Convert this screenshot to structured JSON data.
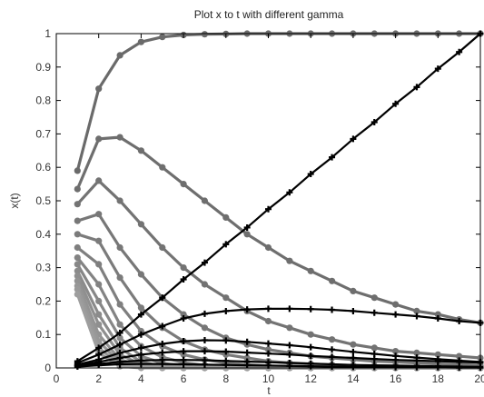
{
  "chart_data": {
    "type": "line",
    "title": "Plot x to t with different gamma",
    "xlabel": "t",
    "ylabel": "x(t)",
    "xlim": [
      0,
      20
    ],
    "ylim": [
      0,
      1
    ],
    "xticks": [
      0,
      2,
      4,
      6,
      8,
      10,
      12,
      14,
      16,
      18,
      20
    ],
    "yticks": [
      0,
      0.1,
      0.2,
      0.3,
      0.4,
      0.5,
      0.6,
      0.7,
      0.8,
      0.9,
      1
    ],
    "grid": false,
    "x": [
      1,
      2,
      3,
      4,
      5,
      6,
      7,
      8,
      9,
      10,
      11,
      12,
      13,
      14,
      15,
      16,
      17,
      18,
      19,
      20
    ],
    "series": [
      {
        "color": "#6a6a6a",
        "values": [
          0.59,
          0.835,
          0.935,
          0.975,
          0.99,
          0.996,
          0.998,
          0.999,
          1,
          1,
          1,
          1,
          1,
          1,
          1,
          1,
          1,
          1,
          1,
          1
        ]
      },
      {
        "color": "#6e6e6e",
        "values": [
          0.535,
          0.685,
          0.69,
          0.65,
          0.6,
          0.55,
          0.5,
          0.45,
          0.4,
          0.36,
          0.32,
          0.29,
          0.26,
          0.23,
          0.21,
          0.19,
          0.17,
          0.16,
          0.145,
          0.135
        ]
      },
      {
        "color": "#737373",
        "values": [
          0.49,
          0.56,
          0.5,
          0.43,
          0.36,
          0.3,
          0.25,
          0.21,
          0.17,
          0.14,
          0.12,
          0.1,
          0.085,
          0.07,
          0.06,
          0.05,
          0.045,
          0.04,
          0.035,
          0.03
        ]
      },
      {
        "color": "#777777",
        "values": [
          0.44,
          0.46,
          0.36,
          0.28,
          0.21,
          0.16,
          0.12,
          0.09,
          0.07,
          0.055,
          0.045,
          0.035,
          0.03,
          0.025,
          0.02,
          0.018,
          0.015,
          0.012,
          0.01,
          0.008
        ]
      },
      {
        "color": "#7b7b7b",
        "values": [
          0.4,
          0.38,
          0.27,
          0.18,
          0.12,
          0.08,
          0.055,
          0.04,
          0.03,
          0.02,
          0.015,
          0.012,
          0.009,
          0.007,
          0.005,
          0.004,
          0.003,
          0.002,
          0.002,
          0.001
        ]
      },
      {
        "color": "#7f7f7f",
        "values": [
          0.36,
          0.31,
          0.19,
          0.11,
          0.065,
          0.04,
          0.025,
          0.015,
          0.01,
          0.006,
          0.004,
          0.003,
          0.002,
          0.001,
          0.001,
          0.001,
          0,
          0,
          0,
          0
        ]
      },
      {
        "color": "#838383",
        "values": [
          0.33,
          0.25,
          0.13,
          0.065,
          0.032,
          0.016,
          0.008,
          0.004,
          0.002,
          0.001,
          0.001,
          0,
          0,
          0,
          0,
          0,
          0,
          0,
          0,
          0
        ]
      },
      {
        "color": "#878787",
        "values": [
          0.31,
          0.2,
          0.09,
          0.035,
          0.014,
          0.005,
          0.002,
          0.001,
          0,
          0,
          0,
          0,
          0,
          0,
          0,
          0,
          0,
          0,
          0,
          0
        ]
      },
      {
        "color": "#8b8b8b",
        "values": [
          0.29,
          0.16,
          0.06,
          0.018,
          0.005,
          0.002,
          0.001,
          0,
          0,
          0,
          0,
          0,
          0,
          0,
          0,
          0,
          0,
          0,
          0,
          0
        ]
      },
      {
        "color": "#8f8f8f",
        "values": [
          0.275,
          0.13,
          0.04,
          0.01,
          0.002,
          0,
          0,
          0,
          0,
          0,
          0,
          0,
          0,
          0,
          0,
          0,
          0,
          0,
          0,
          0
        ]
      },
      {
        "color": "#939393",
        "values": [
          0.26,
          0.1,
          0.025,
          0.005,
          0.001,
          0,
          0,
          0,
          0,
          0,
          0,
          0,
          0,
          0,
          0,
          0,
          0,
          0,
          0,
          0
        ]
      },
      {
        "color": "#979797",
        "values": [
          0.245,
          0.08,
          0.015,
          0.002,
          0,
          0,
          0,
          0,
          0,
          0,
          0,
          0,
          0,
          0,
          0,
          0,
          0,
          0,
          0,
          0
        ]
      },
      {
        "color": "#9a9a9a",
        "values": [
          0.235,
          0.06,
          0.01,
          0.001,
          0,
          0,
          0,
          0,
          0,
          0,
          0,
          0,
          0,
          0,
          0,
          0,
          0,
          0,
          0,
          0
        ]
      },
      {
        "color": "#9e9e9e",
        "values": [
          0.22,
          0.045,
          0.005,
          0,
          0,
          0,
          0,
          0,
          0,
          0,
          0,
          0,
          0,
          0,
          0,
          0,
          0,
          0,
          0,
          0
        ]
      },
      {
        "color": "#000000",
        "values": [
          0.02,
          0.06,
          0.105,
          0.16,
          0.21,
          0.265,
          0.315,
          0.37,
          0.42,
          0.475,
          0.525,
          0.58,
          0.63,
          0.685,
          0.735,
          0.79,
          0.84,
          0.895,
          0.945,
          1.0
        ]
      },
      {
        "color": "#000000",
        "values": [
          0.015,
          0.04,
          0.07,
          0.1,
          0.125,
          0.148,
          0.162,
          0.17,
          0.175,
          0.177,
          0.177,
          0.176,
          0.174,
          0.17,
          0.165,
          0.16,
          0.155,
          0.148,
          0.14,
          0.135
        ]
      },
      {
        "color": "#000000",
        "values": [
          0.01,
          0.025,
          0.045,
          0.06,
          0.072,
          0.08,
          0.083,
          0.082,
          0.078,
          0.073,
          0.068,
          0.062,
          0.055,
          0.048,
          0.042,
          0.036,
          0.031,
          0.026,
          0.022,
          0.018
        ]
      },
      {
        "color": "#000000",
        "values": [
          0.008,
          0.018,
          0.03,
          0.04,
          0.046,
          0.05,
          0.05,
          0.049,
          0.046,
          0.043,
          0.04,
          0.036,
          0.033,
          0.03,
          0.027,
          0.024,
          0.022,
          0.02,
          0.018,
          0.016
        ]
      },
      {
        "color": "#000000",
        "values": [
          0.006,
          0.012,
          0.018,
          0.022,
          0.024,
          0.024,
          0.023,
          0.021,
          0.019,
          0.017,
          0.015,
          0.013,
          0.011,
          0.009,
          0.008,
          0.007,
          0.006,
          0.005,
          0.004,
          0.003
        ]
      },
      {
        "color": "#000000",
        "values": [
          0.004,
          0.008,
          0.011,
          0.012,
          0.012,
          0.011,
          0.01,
          0.009,
          0.008,
          0.007,
          0.006,
          0.005,
          0.004,
          0.003,
          0.003,
          0.002,
          0.002,
          0.002,
          0.001,
          0.001
        ]
      }
    ]
  }
}
